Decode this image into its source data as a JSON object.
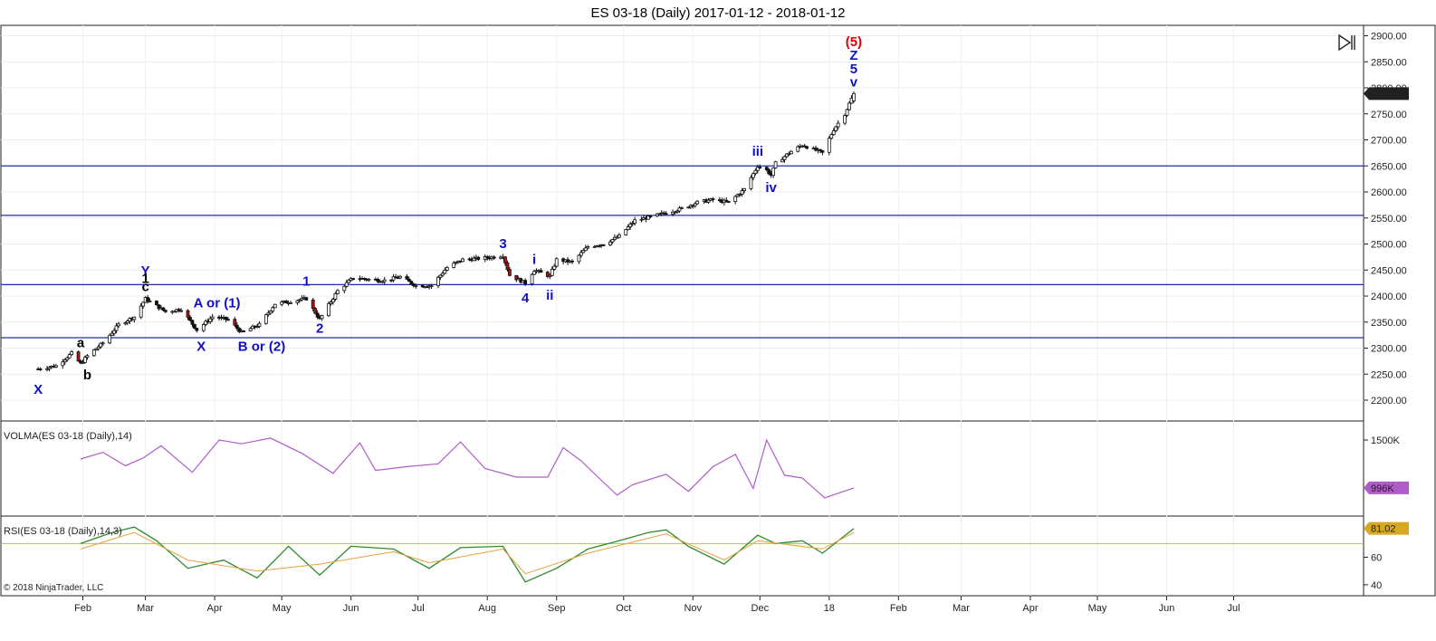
{
  "window": {
    "title": "ES 03-18 (Daily)  2017-01-12 - 2018-01-12",
    "copyright": "© 2018 NinjaTrader, LLC",
    "scroll_end_icon": "skip-to-end-icon"
  },
  "colors": {
    "wave_blue": "#1010c8",
    "wave_black": "#000000",
    "wave_red": "#e00000",
    "hline_blue": "#1f2fa8",
    "volma_line": "#b05cc8",
    "rsi_line": "#2e8b2e",
    "rsi_avg": "#e8a040",
    "rsi_level": "#a8c840",
    "price_badge": "#202020",
    "volma_badge": "#b05cc8",
    "rsi_badge": "#d8a820"
  },
  "chart_data": [
    {
      "type": "candlestick",
      "title": "ES 03-18 (Daily)  2017-01-12 - 2018-01-12",
      "x_tick_labels": [
        "Feb",
        "Mar",
        "Apr",
        "May",
        "Jun",
        "Jul",
        "Aug",
        "Sep",
        "Oct",
        "Nov",
        "Dec",
        "18",
        "Feb",
        "Mar",
        "Apr",
        "May",
        "Jun",
        "Jul"
      ],
      "ylim": [
        2160,
        2920
      ],
      "y_ticks": [
        2200,
        2250,
        2300,
        2350,
        2400,
        2450,
        2500,
        2550,
        2600,
        2650,
        2700,
        2750,
        2800,
        2850,
        2900
      ],
      "y_tick_labels": [
        "2200.00",
        "2250.00",
        "2300.00",
        "2350.00",
        "2400.00",
        "2450.00",
        "2500.00",
        "2550.00",
        "2600.00",
        "2650.00",
        "2700.00",
        "2750.00",
        "2800.00",
        "2850.00",
        "2900.00"
      ],
      "last_price": 2789,
      "last_price_label": "2789.00",
      "horizontal_lines": [
        2650,
        2555,
        2422,
        2320
      ],
      "closes": [
        {
          "date": "2017-01-12",
          "close": 2260
        },
        {
          "date": "2017-01-20",
          "close": 2266
        },
        {
          "date": "2017-01-27",
          "close": 2290
        },
        {
          "date": "2017-01-31",
          "close": 2270
        },
        {
          "date": "2017-02-03",
          "close": 2285
        },
        {
          "date": "2017-02-10",
          "close": 2310
        },
        {
          "date": "2017-02-17",
          "close": 2345
        },
        {
          "date": "2017-02-24",
          "close": 2360
        },
        {
          "date": "2017-03-01",
          "close": 2395
        },
        {
          "date": "2017-03-10",
          "close": 2370
        },
        {
          "date": "2017-03-17",
          "close": 2375
        },
        {
          "date": "2017-03-24",
          "close": 2335
        },
        {
          "date": "2017-03-31",
          "close": 2360
        },
        {
          "date": "2017-04-07",
          "close": 2355
        },
        {
          "date": "2017-04-13",
          "close": 2330
        },
        {
          "date": "2017-04-21",
          "close": 2345
        },
        {
          "date": "2017-04-28",
          "close": 2385
        },
        {
          "date": "2017-05-05",
          "close": 2390
        },
        {
          "date": "2017-05-12",
          "close": 2395
        },
        {
          "date": "2017-05-18",
          "close": 2355
        },
        {
          "date": "2017-05-26",
          "close": 2410
        },
        {
          "date": "2017-06-02",
          "close": 2435
        },
        {
          "date": "2017-06-09",
          "close": 2432
        },
        {
          "date": "2017-06-16",
          "close": 2430
        },
        {
          "date": "2017-06-23",
          "close": 2437
        },
        {
          "date": "2017-06-30",
          "close": 2420
        },
        {
          "date": "2017-07-07",
          "close": 2420
        },
        {
          "date": "2017-07-14",
          "close": 2455
        },
        {
          "date": "2017-07-21",
          "close": 2470
        },
        {
          "date": "2017-07-28",
          "close": 2472
        },
        {
          "date": "2017-08-04",
          "close": 2475
        },
        {
          "date": "2017-08-08",
          "close": 2478
        },
        {
          "date": "2017-08-11",
          "close": 2440
        },
        {
          "date": "2017-08-18",
          "close": 2425
        },
        {
          "date": "2017-08-22",
          "close": 2450
        },
        {
          "date": "2017-08-29",
          "close": 2438
        },
        {
          "date": "2017-09-01",
          "close": 2470
        },
        {
          "date": "2017-09-08",
          "close": 2465
        },
        {
          "date": "2017-09-15",
          "close": 2495
        },
        {
          "date": "2017-09-22",
          "close": 2500
        },
        {
          "date": "2017-09-29",
          "close": 2515
        },
        {
          "date": "2017-10-06",
          "close": 2545
        },
        {
          "date": "2017-10-13",
          "close": 2552
        },
        {
          "date": "2017-10-20",
          "close": 2560
        },
        {
          "date": "2017-10-27",
          "close": 2568
        },
        {
          "date": "2017-11-03",
          "close": 2580
        },
        {
          "date": "2017-11-10",
          "close": 2585
        },
        {
          "date": "2017-11-17",
          "close": 2580
        },
        {
          "date": "2017-11-24",
          "close": 2605
        },
        {
          "date": "2017-11-30",
          "close": 2650
        },
        {
          "date": "2017-12-04",
          "close": 2642
        },
        {
          "date": "2017-12-06",
          "close": 2632
        },
        {
          "date": "2017-12-08",
          "close": 2655
        },
        {
          "date": "2017-12-15",
          "close": 2678
        },
        {
          "date": "2017-12-20",
          "close": 2690
        },
        {
          "date": "2017-12-29",
          "close": 2675
        },
        {
          "date": "2018-01-03",
          "close": 2720
        },
        {
          "date": "2018-01-08",
          "close": 2750
        },
        {
          "date": "2018-01-12",
          "close": 2789
        }
      ],
      "wave_annotations": [
        {
          "text": "X",
          "date": "2017-01-12",
          "price": 2212,
          "color": "blue"
        },
        {
          "text": "a",
          "date": "2017-01-31",
          "price": 2302,
          "color": "black"
        },
        {
          "text": "b",
          "date": "2017-02-03",
          "price": 2240,
          "color": "black"
        },
        {
          "text": "Y",
          "date": "2017-03-01",
          "price": 2440,
          "color": "blue"
        },
        {
          "text": "1",
          "date": "2017-03-01",
          "price": 2425,
          "color": "black"
        },
        {
          "text": "c",
          "date": "2017-03-01",
          "price": 2410,
          "color": "black"
        },
        {
          "text": "A or (1)",
          "date": "2017-04-02",
          "price": 2378,
          "color": "blue"
        },
        {
          "text": "X",
          "date": "2017-03-26",
          "price": 2295,
          "color": "blue"
        },
        {
          "text": "B or (2)",
          "date": "2017-04-22",
          "price": 2295,
          "color": "blue"
        },
        {
          "text": "1",
          "date": "2017-05-12",
          "price": 2420,
          "color": "blue"
        },
        {
          "text": "2",
          "date": "2017-05-18",
          "price": 2330,
          "color": "blue"
        },
        {
          "text": "3",
          "date": "2017-08-08",
          "price": 2492,
          "color": "blue"
        },
        {
          "text": "i",
          "date": "2017-08-22",
          "price": 2462,
          "color": "blue"
        },
        {
          "text": "4",
          "date": "2017-08-18",
          "price": 2388,
          "color": "blue"
        },
        {
          "text": "ii",
          "date": "2017-08-29",
          "price": 2393,
          "color": "blue"
        },
        {
          "text": "iii",
          "date": "2017-11-30",
          "price": 2670,
          "color": "blue"
        },
        {
          "text": "iv",
          "date": "2017-12-06",
          "price": 2600,
          "color": "blue"
        },
        {
          "text": "(5)",
          "date": "2018-01-12",
          "price": 2880,
          "color": "red"
        },
        {
          "text": "Z",
          "date": "2018-01-12",
          "price": 2854,
          "color": "blue"
        },
        {
          "text": "5",
          "date": "2018-01-12",
          "price": 2828,
          "color": "blue"
        },
        {
          "text": "v",
          "date": "2018-01-12",
          "price": 2803,
          "color": "blue"
        }
      ]
    },
    {
      "type": "line",
      "label": "VOLMA(ES 03-18 (Daily),14)",
      "ylim": [
        700,
        1700
      ],
      "y_ticks": [
        1500
      ],
      "y_tick_labels": [
        "1500K"
      ],
      "last_value_label": "996K",
      "series": [
        {
          "date": "2017-01-31",
          "value": 1300
        },
        {
          "date": "2017-02-10",
          "value": 1370
        },
        {
          "date": "2017-02-20",
          "value": 1230
        },
        {
          "date": "2017-02-28",
          "value": 1310
        },
        {
          "date": "2017-03-08",
          "value": 1440
        },
        {
          "date": "2017-03-22",
          "value": 1160
        },
        {
          "date": "2017-04-03",
          "value": 1500
        },
        {
          "date": "2017-04-13",
          "value": 1460
        },
        {
          "date": "2017-04-26",
          "value": 1520
        },
        {
          "date": "2017-05-10",
          "value": 1360
        },
        {
          "date": "2017-05-24",
          "value": 1150
        },
        {
          "date": "2017-06-05",
          "value": 1470
        },
        {
          "date": "2017-06-12",
          "value": 1180
        },
        {
          "date": "2017-06-26",
          "value": 1220
        },
        {
          "date": "2017-07-10",
          "value": 1250
        },
        {
          "date": "2017-07-20",
          "value": 1480
        },
        {
          "date": "2017-07-31",
          "value": 1200
        },
        {
          "date": "2017-08-14",
          "value": 1110
        },
        {
          "date": "2017-08-28",
          "value": 1110
        },
        {
          "date": "2017-09-04",
          "value": 1420
        },
        {
          "date": "2017-09-12",
          "value": 1280
        },
        {
          "date": "2017-09-20",
          "value": 1100
        },
        {
          "date": "2017-09-28",
          "value": 920
        },
        {
          "date": "2017-10-05",
          "value": 1030
        },
        {
          "date": "2017-10-20",
          "value": 1140
        },
        {
          "date": "2017-10-30",
          "value": 960
        },
        {
          "date": "2017-11-10",
          "value": 1220
        },
        {
          "date": "2017-11-20",
          "value": 1350
        },
        {
          "date": "2017-11-28",
          "value": 990
        },
        {
          "date": "2017-12-04",
          "value": 1500
        },
        {
          "date": "2017-12-12",
          "value": 1130
        },
        {
          "date": "2017-12-20",
          "value": 1100
        },
        {
          "date": "2017-12-30",
          "value": 890
        },
        {
          "date": "2018-01-05",
          "value": 940
        },
        {
          "date": "2018-01-12",
          "value": 996
        }
      ]
    },
    {
      "type": "line",
      "label": "RSI(ES 03-18 (Daily),14,3)",
      "ylim": [
        32,
        90
      ],
      "y_ticks": [
        40,
        60
      ],
      "y_tick_labels": [
        "40",
        "60"
      ],
      "level": 70,
      "last_value_label": "81.02",
      "series": [
        {
          "name": "RSI",
          "points": [
            {
              "date": "2017-01-31",
              "value": 70
            },
            {
              "date": "2017-02-14",
              "value": 78
            },
            {
              "date": "2017-02-24",
              "value": 82
            },
            {
              "date": "2017-03-06",
              "value": 72
            },
            {
              "date": "2017-03-20",
              "value": 52
            },
            {
              "date": "2017-04-05",
              "value": 58
            },
            {
              "date": "2017-04-20",
              "value": 45
            },
            {
              "date": "2017-05-04",
              "value": 68
            },
            {
              "date": "2017-05-18",
              "value": 47
            },
            {
              "date": "2017-06-01",
              "value": 68
            },
            {
              "date": "2017-06-20",
              "value": 66
            },
            {
              "date": "2017-07-06",
              "value": 52
            },
            {
              "date": "2017-07-20",
              "value": 67
            },
            {
              "date": "2017-08-08",
              "value": 68
            },
            {
              "date": "2017-08-18",
              "value": 42
            },
            {
              "date": "2017-09-01",
              "value": 52
            },
            {
              "date": "2017-09-15",
              "value": 66
            },
            {
              "date": "2017-09-29",
              "value": 72
            },
            {
              "date": "2017-10-12",
              "value": 78
            },
            {
              "date": "2017-10-20",
              "value": 80
            },
            {
              "date": "2017-10-30",
              "value": 68
            },
            {
              "date": "2017-11-15",
              "value": 55
            },
            {
              "date": "2017-11-30",
              "value": 76
            },
            {
              "date": "2017-12-08",
              "value": 70
            },
            {
              "date": "2017-12-20",
              "value": 72
            },
            {
              "date": "2017-12-29",
              "value": 63
            },
            {
              "date": "2018-01-12",
              "value": 81
            }
          ]
        },
        {
          "name": "Average",
          "points": [
            {
              "date": "2017-01-31",
              "value": 66
            },
            {
              "date": "2017-02-24",
              "value": 78
            },
            {
              "date": "2017-03-20",
              "value": 58
            },
            {
              "date": "2017-04-20",
              "value": 50
            },
            {
              "date": "2017-05-18",
              "value": 55
            },
            {
              "date": "2017-06-20",
              "value": 64
            },
            {
              "date": "2017-07-06",
              "value": 56
            },
            {
              "date": "2017-08-08",
              "value": 66
            },
            {
              "date": "2017-08-18",
              "value": 48
            },
            {
              "date": "2017-09-15",
              "value": 63
            },
            {
              "date": "2017-10-20",
              "value": 77
            },
            {
              "date": "2017-11-15",
              "value": 58
            },
            {
              "date": "2017-11-30",
              "value": 72
            },
            {
              "date": "2017-12-29",
              "value": 66
            },
            {
              "date": "2018-01-12",
              "value": 78
            }
          ]
        }
      ]
    }
  ]
}
